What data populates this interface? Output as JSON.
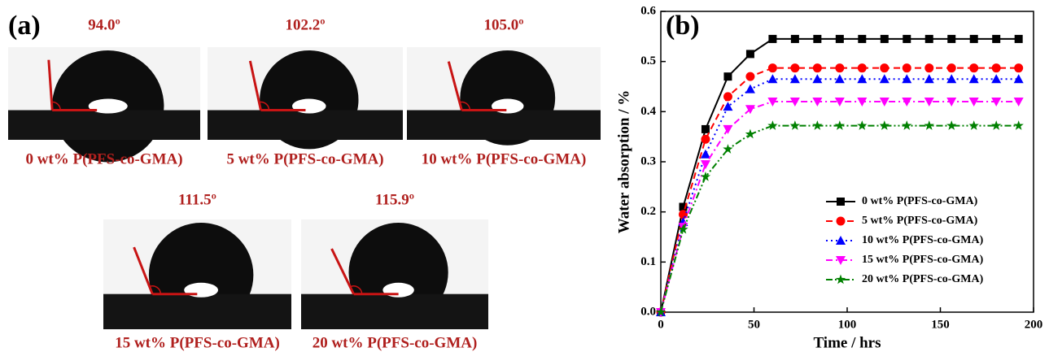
{
  "panel_a": {
    "label": "(a)",
    "images": [
      {
        "angle": "94.0º",
        "caption": "0 wt% P(PFS-co-GMA)"
      },
      {
        "angle": "102.2º",
        "caption": "5 wt% P(PFS-co-GMA)"
      },
      {
        "angle": "105.0º",
        "caption": "10 wt% P(PFS-co-GMA)"
      },
      {
        "angle": "111.5º",
        "caption": "15 wt% P(PFS-co-GMA)"
      },
      {
        "angle": "115.9º",
        "caption": "20 wt% P(PFS-co-GMA)"
      }
    ]
  },
  "chart_data": {
    "type": "line",
    "panel_label": "(b)",
    "x_label": "Time / hrs",
    "y_label": "Water absorption / %",
    "x": [
      0,
      12,
      24,
      36,
      48,
      60,
      72,
      84,
      96,
      108,
      120,
      132,
      144,
      156,
      168,
      180,
      192
    ],
    "xlim": [
      0,
      200
    ],
    "xticks": [
      0,
      50,
      100,
      150,
      200
    ],
    "ylim": [
      0,
      0.6
    ],
    "yticks": [
      {
        "value": 0,
        "label": "0.0"
      },
      0.1,
      0.2,
      0.3,
      0.4,
      0.5,
      0.6
    ],
    "legend": "lower right",
    "series": [
      {
        "name": "0 wt% P(PFS-co-GMA)",
        "color": "#000000",
        "marker": "square",
        "line_style": "solid",
        "values": [
          0,
          0.21,
          0.365,
          0.47,
          0.515,
          0.545,
          0.545,
          0.545,
          0.545,
          0.545,
          0.545,
          0.545,
          0.545,
          0.545,
          0.545,
          0.545,
          0.545
        ]
      },
      {
        "name": "5 wt% P(PFS-co-GMA)",
        "color": "#ff0000",
        "marker": "circle",
        "line_style": "dash",
        "values": [
          0,
          0.195,
          0.345,
          0.43,
          0.47,
          0.487,
          0.487,
          0.487,
          0.487,
          0.487,
          0.487,
          0.487,
          0.487,
          0.487,
          0.487,
          0.487,
          0.487
        ]
      },
      {
        "name": "10 wt% P(PFS-co-GMA)",
        "color": "#0000ff",
        "marker": "triangle-up",
        "line_style": "dot",
        "values": [
          0,
          0.18,
          0.315,
          0.41,
          0.445,
          0.465,
          0.465,
          0.465,
          0.465,
          0.465,
          0.465,
          0.465,
          0.465,
          0.465,
          0.465,
          0.465,
          0.465
        ]
      },
      {
        "name": "15 wt% P(PFS-co-GMA)",
        "color": "#ff00ff",
        "marker": "triangle-down",
        "line_style": "dashdot",
        "values": [
          0,
          0.17,
          0.295,
          0.365,
          0.405,
          0.42,
          0.42,
          0.42,
          0.42,
          0.42,
          0.42,
          0.42,
          0.42,
          0.42,
          0.42,
          0.42,
          0.42
        ]
      },
      {
        "name": "20 wt% P(PFS-co-GMA)",
        "color": "#008000",
        "marker": "star",
        "line_style": "dashdotdot",
        "values": [
          0,
          0.165,
          0.27,
          0.325,
          0.355,
          0.372,
          0.372,
          0.372,
          0.372,
          0.372,
          0.372,
          0.372,
          0.372,
          0.372,
          0.372,
          0.372,
          0.372
        ]
      }
    ]
  }
}
